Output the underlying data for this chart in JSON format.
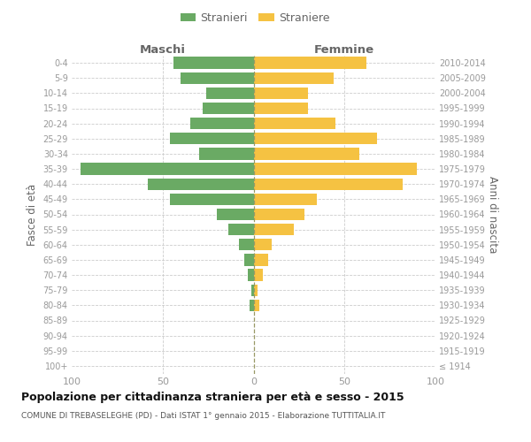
{
  "age_groups": [
    "100+",
    "95-99",
    "90-94",
    "85-89",
    "80-84",
    "75-79",
    "70-74",
    "65-69",
    "60-64",
    "55-59",
    "50-54",
    "45-49",
    "40-44",
    "35-39",
    "30-34",
    "25-29",
    "20-24",
    "15-19",
    "10-14",
    "5-9",
    "0-4"
  ],
  "birth_years": [
    "≤ 1914",
    "1915-1919",
    "1920-1924",
    "1925-1929",
    "1930-1934",
    "1935-1939",
    "1940-1944",
    "1945-1949",
    "1950-1954",
    "1955-1959",
    "1960-1964",
    "1965-1969",
    "1970-1974",
    "1975-1979",
    "1980-1984",
    "1985-1989",
    "1990-1994",
    "1995-1999",
    "2000-2004",
    "2005-2009",
    "2010-2014"
  ],
  "males": [
    0,
    0,
    0,
    0,
    2,
    1,
    3,
    5,
    8,
    14,
    20,
    46,
    58,
    95,
    30,
    46,
    35,
    28,
    26,
    40,
    44
  ],
  "females": [
    0,
    0,
    0,
    0,
    3,
    2,
    5,
    8,
    10,
    22,
    28,
    35,
    82,
    90,
    58,
    68,
    45,
    30,
    30,
    44,
    62
  ],
  "male_color": "#6aaa64",
  "female_color": "#f5c242",
  "bar_height": 0.78,
  "title": "Popolazione per cittadinanza straniera per età e sesso - 2015",
  "subtitle": "COMUNE DI TREBASELEGHE (PD) - Dati ISTAT 1° gennaio 2015 - Elaborazione TUTTITALIA.IT",
  "ylabel_left": "Fasce di età",
  "ylabel_right": "Anni di nascita",
  "xlabel_left": "Maschi",
  "xlabel_right": "Femmine",
  "legend_stranieri": "Stranieri",
  "legend_straniere": "Straniere",
  "xlim": 100,
  "background_color": "#ffffff",
  "grid_color": "#cccccc",
  "axis_label_color": "#666666",
  "tick_color": "#999999",
  "center_line_color": "#999966",
  "title_color": "#111111",
  "subtitle_color": "#555555"
}
